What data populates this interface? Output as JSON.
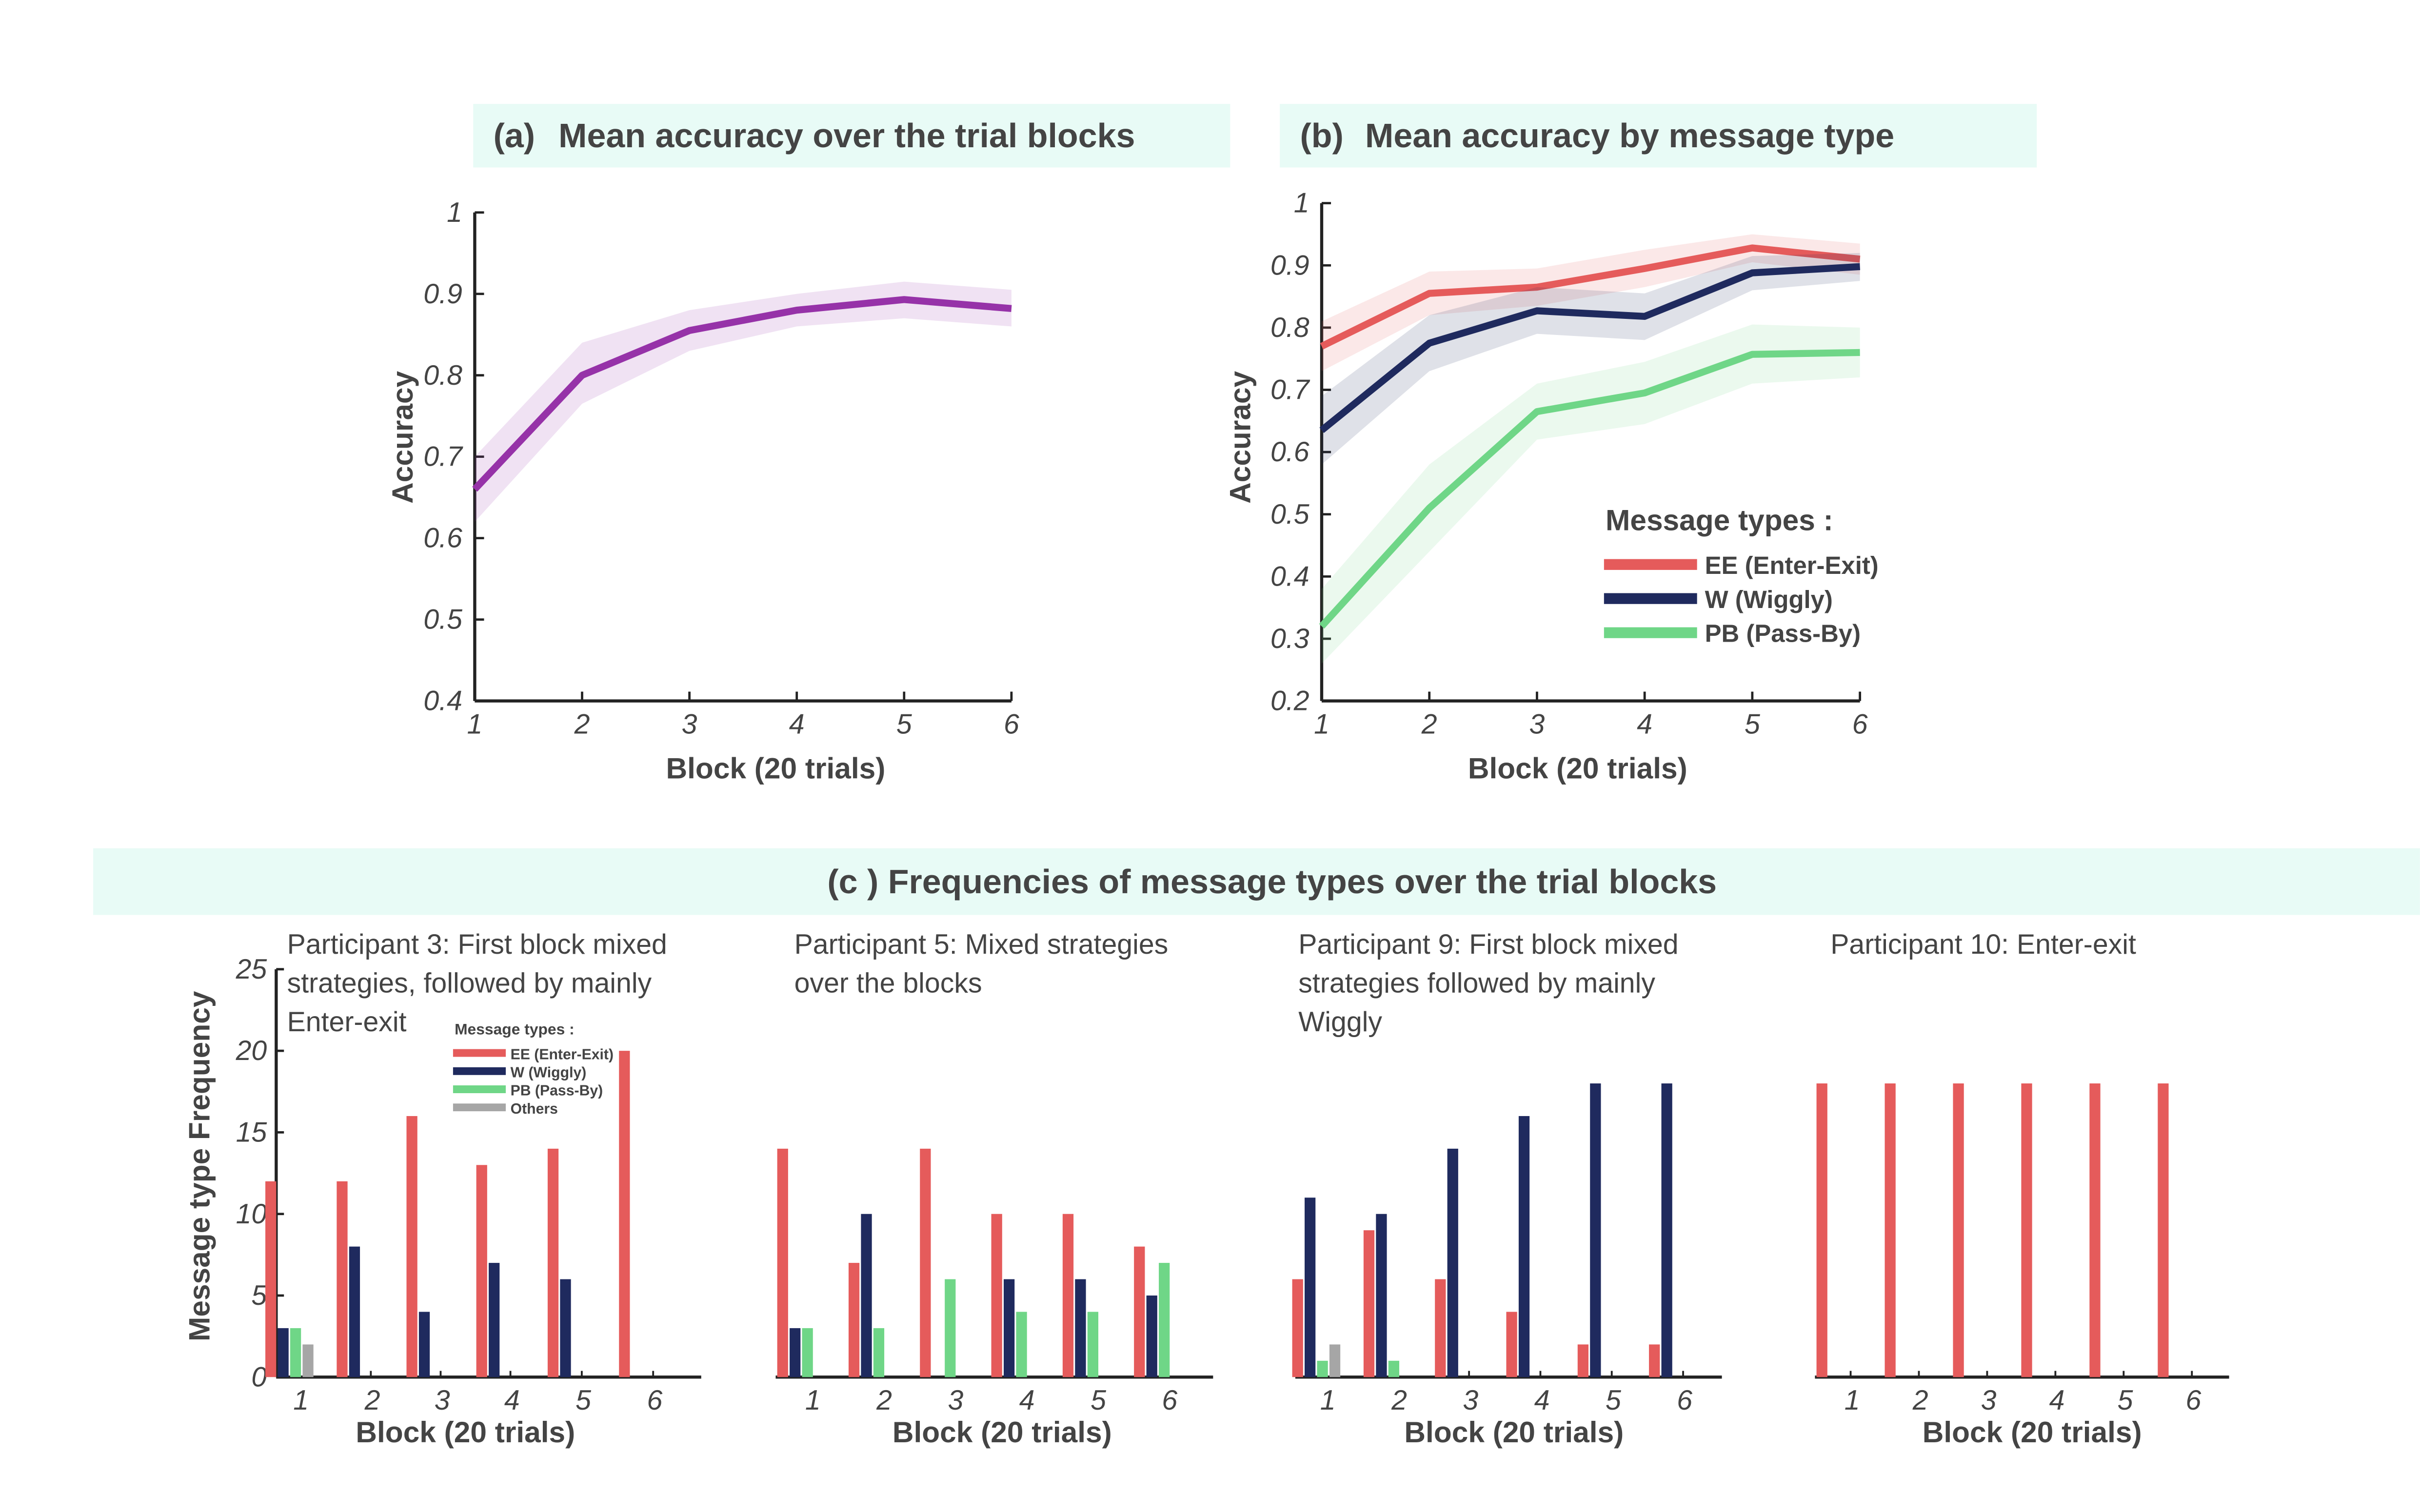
{
  "panel_a": {
    "title_prefix": "(a)",
    "title": "Mean accuracy over the trial blocks",
    "ylabel": "Accuracy",
    "xlabel": "Block (20 trials)",
    "x_ticks": [
      "1",
      "2",
      "3",
      "4",
      "5",
      "6"
    ],
    "y_ticks": [
      "0.4",
      "0.5",
      "0.6",
      "0.7",
      "0.8",
      "0.9",
      "1"
    ]
  },
  "panel_b": {
    "title_prefix": "(b)",
    "title": "Mean accuracy by message type",
    "ylabel": "Accuracy",
    "xlabel": "Block (20 trials)",
    "x_ticks": [
      "1",
      "2",
      "3",
      "4",
      "5",
      "6"
    ],
    "y_ticks": [
      "0.2",
      "0.3",
      "0.4",
      "0.5",
      "0.6",
      "0.7",
      "0.8",
      "0.9",
      "1"
    ],
    "legend_title": "Message types :",
    "legend": [
      "EE (Enter-Exit)",
      "W (Wiggly)",
      "PB (Pass-By)"
    ]
  },
  "panel_c": {
    "title": "(c ) Frequencies of message types over the trial blocks",
    "ylabel": "Message type Frequency",
    "xlabel": "Block (20 trials)",
    "x_ticks": [
      "1",
      "2",
      "3",
      "4",
      "5",
      "6"
    ],
    "y_ticks": [
      "0",
      "5",
      "10",
      "15",
      "20",
      "25"
    ],
    "legend_title": "Message types :",
    "legend": [
      "EE (Enter-Exit)",
      "W (Wiggly)",
      "PB (Pass-By)",
      "Others"
    ],
    "subtitles": [
      [
        "Participant 3: First block mixed",
        "strategies, followed by mainly",
        "Enter-exit"
      ],
      [
        "Participant 5: Mixed strategies",
        "over the blocks"
      ],
      [
        "Participant 9: First block mixed",
        "strategies followed by mainly",
        "Wiggly"
      ],
      [
        "Participant 10: Enter-exit"
      ]
    ]
  },
  "colors": {
    "purple": "#9632a8",
    "ee": "#e55b5b",
    "w": "#1f2a5e",
    "pb": "#6fd687",
    "others": "#a6a6a6",
    "title_bg": "#e8fbf6",
    "text": "#444444"
  },
  "chart_data": [
    {
      "type": "line",
      "title": "Mean accuracy over the trial blocks",
      "xlabel": "Block (20 trials)",
      "ylabel": "Accuracy",
      "x": [
        1,
        2,
        3,
        4,
        5,
        6
      ],
      "ylim": [
        0.4,
        1
      ],
      "series": [
        {
          "values": [
            0.66,
            0.8,
            0.855,
            0.88,
            0.893,
            0.882
          ],
          "band_lower": [
            0.62,
            0.765,
            0.83,
            0.86,
            0.87,
            0.86
          ],
          "band_upper": [
            0.7,
            0.84,
            0.88,
            0.9,
            0.915,
            0.905
          ]
        }
      ]
    },
    {
      "type": "line",
      "title": "Mean accuracy by message type",
      "xlabel": "Block (20 trials)",
      "ylabel": "Accuracy",
      "x": [
        1,
        2,
        3,
        4,
        5,
        6
      ],
      "ylim": [
        0.2,
        1
      ],
      "legend_position": "bottom-right",
      "series": [
        {
          "name": "EE (Enter-Exit)",
          "values": [
            0.77,
            0.855,
            0.865,
            0.895,
            0.928,
            0.91
          ],
          "band_lower": [
            0.73,
            0.82,
            0.835,
            0.865,
            0.905,
            0.885
          ],
          "band_upper": [
            0.81,
            0.89,
            0.895,
            0.925,
            0.95,
            0.935
          ]
        },
        {
          "name": "W (Wiggly)",
          "values": [
            0.635,
            0.775,
            0.827,
            0.818,
            0.888,
            0.898
          ],
          "band_lower": [
            0.58,
            0.73,
            0.79,
            0.78,
            0.86,
            0.875
          ],
          "band_upper": [
            0.69,
            0.82,
            0.865,
            0.855,
            0.915,
            0.92
          ]
        },
        {
          "name": "PB (Pass-By)",
          "values": [
            0.32,
            0.51,
            0.665,
            0.695,
            0.757,
            0.76
          ],
          "band_lower": [
            0.26,
            0.44,
            0.62,
            0.645,
            0.71,
            0.72
          ],
          "band_upper": [
            0.38,
            0.58,
            0.71,
            0.745,
            0.805,
            0.8
          ]
        }
      ]
    },
    {
      "type": "bar",
      "title": "Participant 3: First block mixed strategies, followed by mainly Enter-exit",
      "categories": [
        "1",
        "2",
        "3",
        "4",
        "5",
        "6"
      ],
      "xlabel": "Block (20 trials)",
      "ylabel": "Message type Frequency",
      "ylim": [
        0,
        25
      ],
      "series": [
        {
          "name": "EE (Enter-Exit)",
          "values": [
            12,
            12,
            16,
            13,
            14,
            20
          ]
        },
        {
          "name": "W (Wiggly)",
          "values": [
            3,
            8,
            4,
            7,
            6,
            0
          ]
        },
        {
          "name": "PB (Pass-By)",
          "values": [
            3,
            0,
            0,
            0,
            0,
            0
          ]
        },
        {
          "name": "Others",
          "values": [
            2,
            0,
            0,
            0,
            0,
            0
          ]
        }
      ]
    },
    {
      "type": "bar",
      "title": "Participant 5: Mixed strategies over the blocks",
      "categories": [
        "1",
        "2",
        "3",
        "4",
        "5",
        "6"
      ],
      "xlabel": "Block (20 trials)",
      "ylim": [
        0,
        25
      ],
      "series": [
        {
          "name": "EE (Enter-Exit)",
          "values": [
            14,
            7,
            14,
            10,
            10,
            8
          ]
        },
        {
          "name": "W (Wiggly)",
          "values": [
            3,
            10,
            0,
            6,
            6,
            5
          ]
        },
        {
          "name": "PB (Pass-By)",
          "values": [
            3,
            3,
            6,
            4,
            4,
            7
          ]
        },
        {
          "name": "Others",
          "values": [
            0,
            0,
            0,
            0,
            0,
            0
          ]
        }
      ]
    },
    {
      "type": "bar",
      "title": "Participant 9: First block mixed strategies followed by mainly Wiggly",
      "categories": [
        "1",
        "2",
        "3",
        "4",
        "5",
        "6"
      ],
      "xlabel": "Block (20 trials)",
      "ylim": [
        0,
        25
      ],
      "series": [
        {
          "name": "EE (Enter-Exit)",
          "values": [
            6,
            9,
            6,
            4,
            2,
            2
          ]
        },
        {
          "name": "W (Wiggly)",
          "values": [
            11,
            10,
            14,
            16,
            18,
            18
          ]
        },
        {
          "name": "PB (Pass-By)",
          "values": [
            1,
            1,
            0,
            0,
            0,
            0
          ]
        },
        {
          "name": "Others",
          "values": [
            2,
            0,
            0,
            0,
            0,
            0
          ]
        }
      ]
    },
    {
      "type": "bar",
      "title": "Participant 10: Enter-exit",
      "categories": [
        "1",
        "2",
        "3",
        "4",
        "5",
        "6"
      ],
      "xlabel": "Block (20 trials)",
      "ylim": [
        0,
        25
      ],
      "series": [
        {
          "name": "EE (Enter-Exit)",
          "values": [
            18,
            18,
            18,
            18,
            18,
            18
          ]
        },
        {
          "name": "W (Wiggly)",
          "values": [
            0,
            0,
            0,
            0,
            0,
            0
          ]
        },
        {
          "name": "PB (Pass-By)",
          "values": [
            0,
            0,
            0,
            0,
            0,
            0
          ]
        },
        {
          "name": "Others",
          "values": [
            0,
            0,
            0,
            0,
            0,
            0
          ]
        }
      ]
    }
  ]
}
